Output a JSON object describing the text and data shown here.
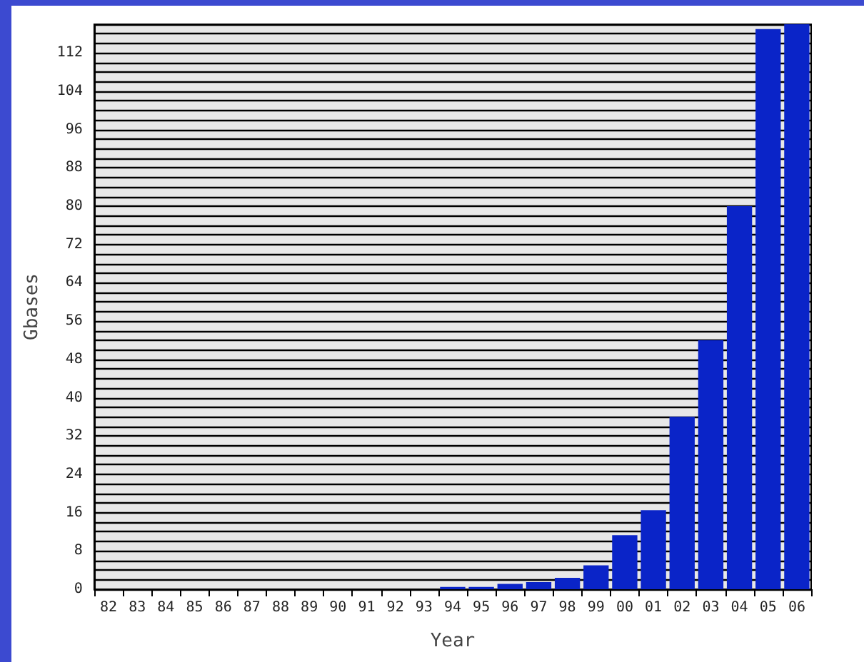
{
  "chart_data": {
    "type": "bar",
    "xlabel": "Year",
    "ylabel": "Gbases",
    "categories": [
      "82",
      "83",
      "84",
      "85",
      "86",
      "87",
      "88",
      "89",
      "90",
      "91",
      "92",
      "93",
      "94",
      "95",
      "96",
      "97",
      "98",
      "99",
      "00",
      "01",
      "02",
      "03",
      "04",
      "05",
      "06"
    ],
    "values": [
      0,
      0,
      0,
      0,
      0,
      0,
      0,
      0,
      0,
      0,
      0,
      0,
      0.5,
      0.5,
      1.1,
      1.5,
      2.4,
      5,
      11.3,
      16.5,
      36,
      52,
      80,
      117,
      118
    ],
    "color": "#0a24c8",
    "ylim": [
      0,
      118
    ],
    "yticks": [
      0,
      {
        "value": 2,
        "label": null
      },
      {
        "value": 4,
        "label": null
      },
      {
        "value": 6,
        "label": null
      },
      8,
      {
        "value": 10,
        "label": null
      },
      {
        "value": 12,
        "label": null
      },
      {
        "value": 14,
        "label": null
      },
      16,
      {
        "value": 18,
        "label": null
      },
      {
        "value": 20,
        "label": null
      },
      {
        "value": 22,
        "label": null
      },
      24,
      {
        "value": 26,
        "label": null
      },
      {
        "value": 28,
        "label": null
      },
      {
        "value": 30,
        "label": null
      },
      32,
      {
        "value": 34,
        "label": null
      },
      {
        "value": 36,
        "label": null
      },
      {
        "value": 38,
        "label": null
      },
      40,
      {
        "value": 42,
        "label": null
      },
      {
        "value": 44,
        "label": null
      },
      {
        "value": 46,
        "label": null
      },
      48,
      {
        "value": 50,
        "label": null
      },
      {
        "value": 52,
        "label": null
      },
      {
        "value": 54,
        "label": null
      },
      56,
      {
        "value": 58,
        "label": null
      },
      {
        "value": 60,
        "label": null
      },
      {
        "value": 62,
        "label": null
      },
      64,
      {
        "value": 66,
        "label": null
      },
      {
        "value": 68,
        "label": null
      },
      {
        "value": 70,
        "label": null
      },
      72,
      {
        "value": 74,
        "label": null
      },
      {
        "value": 76,
        "label": null
      },
      {
        "value": 78,
        "label": null
      },
      80,
      {
        "value": 82,
        "label": null
      },
      {
        "value": 84,
        "label": null
      },
      {
        "value": 86,
        "label": null
      },
      88,
      {
        "value": 90,
        "label": null
      },
      {
        "value": 92,
        "label": null
      },
      {
        "value": 94,
        "label": null
      },
      96,
      {
        "value": 98,
        "label": null
      },
      {
        "value": 100,
        "label": null
      },
      {
        "value": 102,
        "label": null
      },
      104,
      {
        "value": 106,
        "label": null
      },
      {
        "value": 108,
        "label": null
      },
      {
        "value": 110,
        "label": null
      },
      112,
      {
        "value": 114,
        "label": null
      },
      {
        "value": 116,
        "label": null
      },
      {
        "value": 118,
        "label": null
      }
    ],
    "grid": "y"
  }
}
